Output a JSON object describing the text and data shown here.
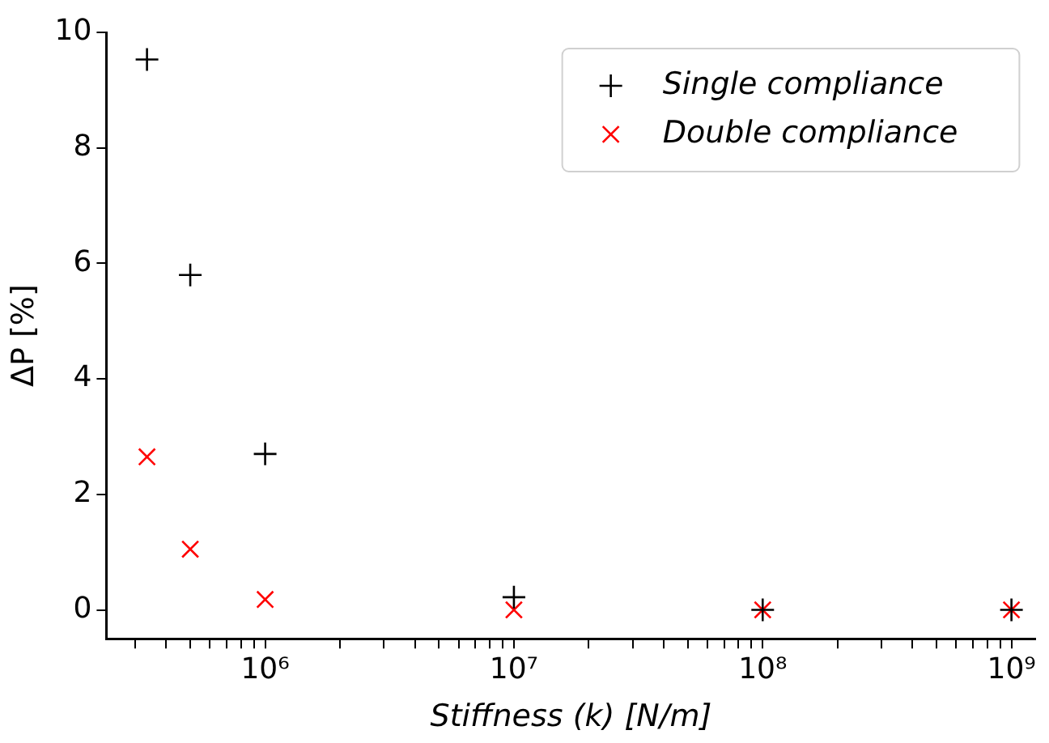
{
  "chart_data": {
    "type": "scatter",
    "xlabel": "Stiffness (k) [N/m]",
    "ylabel": "ΔP [%]",
    "log": "x",
    "xlim": [
      230000,
      1250000000
    ],
    "ylim": [
      -0.5,
      10
    ],
    "xticks": [
      {
        "value": 300000,
        "label": null
      },
      {
        "value": 400000,
        "label": null
      },
      {
        "value": 500000,
        "label": null
      },
      {
        "value": 600000,
        "label": null
      },
      {
        "value": 700000,
        "label": null
      },
      {
        "value": 800000,
        "label": null
      },
      {
        "value": 900000,
        "label": null
      },
      {
        "value": 1000000,
        "label": "10⁶"
      },
      {
        "value": 2000000,
        "label": null
      },
      {
        "value": 3000000,
        "label": null
      },
      {
        "value": 4000000,
        "label": null
      },
      {
        "value": 5000000,
        "label": null
      },
      {
        "value": 6000000,
        "label": null
      },
      {
        "value": 7000000,
        "label": null
      },
      {
        "value": 8000000,
        "label": null
      },
      {
        "value": 9000000,
        "label": null
      },
      {
        "value": 10000000,
        "label": "10⁷"
      },
      {
        "value": 20000000,
        "label": null
      },
      {
        "value": 30000000,
        "label": null
      },
      {
        "value": 40000000,
        "label": null
      },
      {
        "value": 50000000,
        "label": null
      },
      {
        "value": 60000000,
        "label": null
      },
      {
        "value": 70000000,
        "label": null
      },
      {
        "value": 80000000,
        "label": null
      },
      {
        "value": 90000000,
        "label": null
      },
      {
        "value": 100000000,
        "label": "10⁸"
      },
      {
        "value": 200000000,
        "label": null
      },
      {
        "value": 300000000,
        "label": null
      },
      {
        "value": 400000000,
        "label": null
      },
      {
        "value": 500000000,
        "label": null
      },
      {
        "value": 600000000,
        "label": null
      },
      {
        "value": 700000000,
        "label": null
      },
      {
        "value": 800000000,
        "label": null
      },
      {
        "value": 900000000,
        "label": null
      },
      {
        "value": 1000000000,
        "label": "10⁹"
      }
    ],
    "yticks": [
      0,
      2,
      4,
      6,
      8,
      10
    ],
    "grid": false,
    "legend": "top right",
    "x": [
      335000,
      500000,
      1000000,
      10000000,
      100000000,
      1000000000
    ],
    "series": [
      {
        "name": "Single compliance",
        "color": "#000000",
        "marker": "cross",
        "values": [
          9.53,
          5.8,
          2.7,
          0.22,
          0,
          0
        ]
      },
      {
        "name": "Double compliance",
        "color": "#ff0000",
        "marker": "x",
        "values": [
          2.65,
          1.05,
          0.18,
          0,
          0,
          0
        ]
      }
    ]
  }
}
